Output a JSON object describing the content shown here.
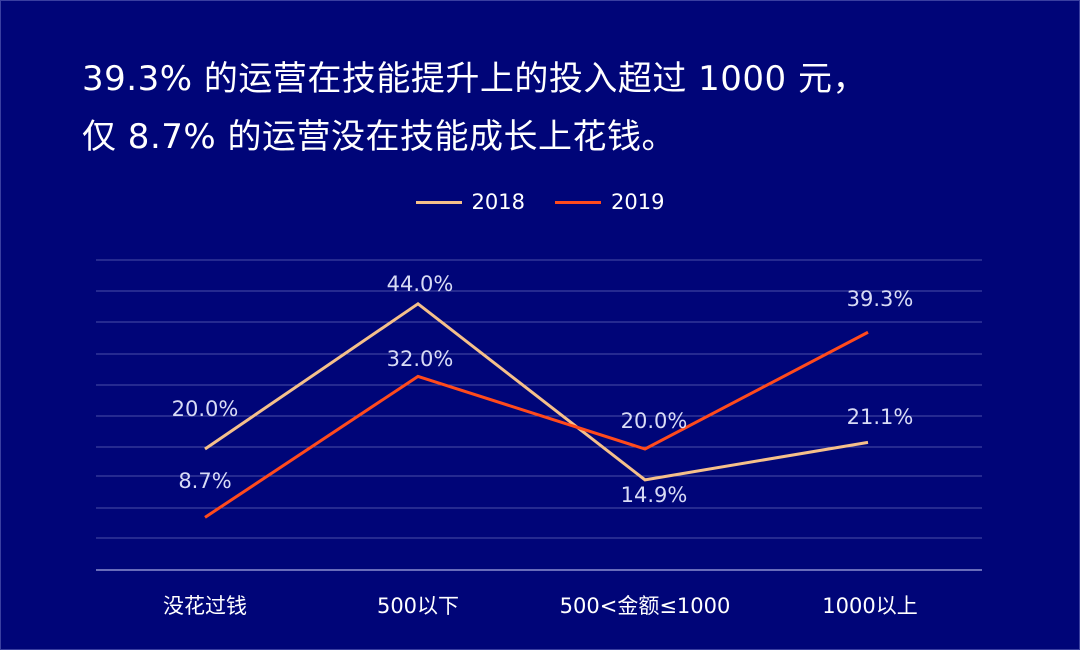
{
  "headline": {
    "line1": "39.3% 的运营在技能提升上的投入超过 1000 元，",
    "line2": "仅 8.7% 的运营没在技能成长上花钱。"
  },
  "colors": {
    "background": "#000578",
    "grid": "#4a4fa8",
    "axis": "#8a8ed0",
    "series_2018": "#f5c08a",
    "series_2019": "#ff4a1c",
    "label": "#d8dbf5"
  },
  "legend": [
    {
      "name": "2018",
      "color": "#f5c08a"
    },
    {
      "name": "2019",
      "color": "#ff4a1c"
    }
  ],
  "chart_data": {
    "type": "line",
    "title": "39.3% 的运营在技能提升上的投入超过 1000 元，仅 8.7% 的运营没在技能成长上花钱。",
    "categories": [
      "没花过钱",
      "500以下",
      "500<金额≤1000",
      "1000以上"
    ],
    "series": [
      {
        "name": "2018",
        "values": [
          20.0,
          44.0,
          14.9,
          21.1
        ],
        "labels": [
          "20.0%",
          "44.0%",
          "14.9%",
          "21.1%"
        ]
      },
      {
        "name": "2019",
        "values": [
          8.7,
          32.0,
          20.0,
          39.3
        ],
        "labels": [
          "8.7%",
          "32.0%",
          "20.0%",
          "39.3%"
        ]
      }
    ],
    "xlabel": "",
    "ylabel": "",
    "ylim": [
      0,
      51
    ],
    "grid": true,
    "legend_position": "top"
  }
}
